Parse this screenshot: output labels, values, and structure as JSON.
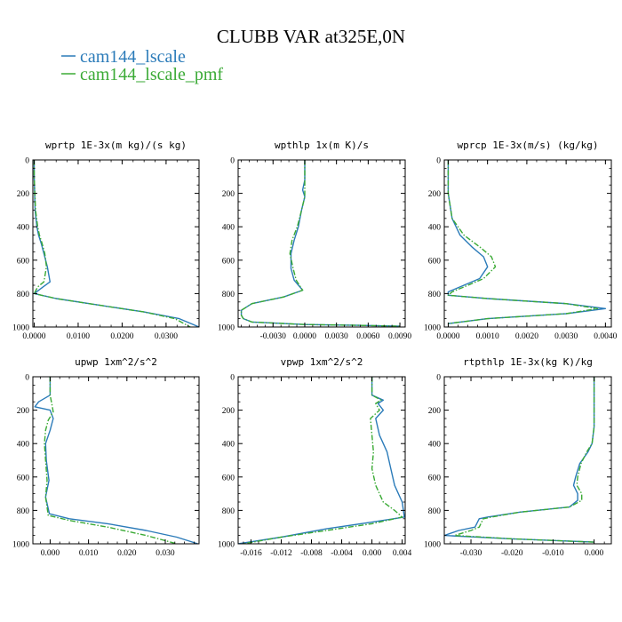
{
  "figure": {
    "title": "CLUBB VAR at325E,0N",
    "legend": [
      {
        "label": "cam144_lscale",
        "color": "#2b7bb9",
        "dash": "solid"
      },
      {
        "label": "cam144_lscale_pmf",
        "color": "#3aaa35",
        "dash": "dashdot"
      }
    ]
  },
  "chart_data": [
    {
      "type": "line",
      "title": "wprtp  1E-3x(m kg)/(s kg)",
      "xlim": [
        -0.0003,
        0.0375
      ],
      "ylim": [
        0,
        1000
      ],
      "y_inverted": true,
      "xticks": [
        0.0,
        0.01,
        0.02,
        0.03
      ],
      "xtick_labels": [
        "0.0000",
        "0.0100",
        "0.0200",
        "0.0300"
      ],
      "yticks": [
        0,
        200,
        400,
        600,
        800,
        1000
      ],
      "series": [
        {
          "name": "cam144_lscale",
          "x": [
            0.0,
            0.0,
            0.0002,
            0.0006,
            0.001,
            0.0016,
            0.0022,
            0.003,
            0.0036,
            0.002,
            0.0,
            0.005,
            0.015,
            0.025,
            0.033,
            0.0375
          ],
          "y": [
            0,
            100,
            300,
            400,
            450,
            500,
            560,
            640,
            730,
            760,
            800,
            830,
            870,
            910,
            950,
            1000
          ]
        },
        {
          "name": "cam144_lscale_pmf",
          "x": [
            0.0,
            0.0,
            0.0003,
            0.0008,
            0.0012,
            0.0018,
            0.0024,
            0.0028,
            0.0022,
            0.0008,
            0.0,
            0.005,
            0.015,
            0.025,
            0.032,
            0.0355
          ],
          "y": [
            0,
            100,
            300,
            400,
            450,
            500,
            560,
            640,
            730,
            760,
            800,
            830,
            870,
            910,
            950,
            1000
          ]
        }
      ]
    },
    {
      "type": "line",
      "title": "wpthlp  1x(m K)/s",
      "xlim": [
        -0.0063,
        0.0095
      ],
      "ylim": [
        0,
        1000
      ],
      "y_inverted": true,
      "xticks": [
        -0.003,
        0.0,
        0.003,
        0.006,
        0.009
      ],
      "xtick_labels": [
        "-0.0030",
        "0.0000",
        "0.0030",
        "0.0060",
        "0.0090"
      ],
      "yticks": [
        0,
        200,
        400,
        600,
        800,
        1000
      ],
      "series": [
        {
          "name": "cam144_lscale",
          "x": [
            0.0,
            0.0,
            -0.0002,
            0.0,
            -0.0003,
            -0.0006,
            -0.001,
            -0.0013,
            -0.0013,
            -0.001,
            -0.0002,
            -0.002,
            -0.005,
            -0.006,
            -0.006,
            -0.0058,
            -0.005,
            0.0,
            0.005,
            0.009
          ],
          "y": [
            0,
            120,
            180,
            220,
            300,
            400,
            480,
            560,
            650,
            720,
            780,
            820,
            860,
            900,
            930,
            950,
            970,
            985,
            990,
            995
          ]
        },
        {
          "name": "cam144_lscale_pmf",
          "x": [
            0.0,
            0.0,
            0.0,
            0.0,
            -0.0003,
            -0.0007,
            -0.0012,
            -0.0014,
            -0.0011,
            -0.0008,
            -0.0002,
            -0.002,
            -0.005,
            -0.006,
            -0.006,
            -0.0058,
            -0.005,
            0.0,
            0.005,
            0.009
          ],
          "y": [
            0,
            120,
            180,
            220,
            300,
            400,
            480,
            560,
            650,
            720,
            780,
            820,
            860,
            900,
            930,
            950,
            970,
            985,
            990,
            995
          ]
        }
      ]
    },
    {
      "type": "line",
      "title": "wprcp  1E-3x(m/s) (kg/kg)",
      "xlim": [
        -0.0001,
        0.00415
      ],
      "ylim": [
        0,
        1000
      ],
      "y_inverted": true,
      "xticks": [
        0.0,
        0.001,
        0.002,
        0.003,
        0.004
      ],
      "xtick_labels": [
        "0.0000",
        "0.0010",
        "0.0020",
        "0.0030",
        "0.0040"
      ],
      "yticks": [
        0,
        200,
        400,
        600,
        800,
        1000
      ],
      "series": [
        {
          "name": "cam144_lscale",
          "x": [
            0.0,
            0.0,
            0.0001,
            0.0003,
            0.0006,
            0.0009,
            0.001,
            0.0008,
            0.0003,
            0.0,
            0.0,
            0.001,
            0.003,
            0.004,
            0.003,
            0.001,
            0.0
          ],
          "y": [
            0,
            200,
            350,
            450,
            520,
            580,
            640,
            710,
            760,
            790,
            810,
            830,
            860,
            890,
            920,
            950,
            980
          ]
        },
        {
          "name": "cam144_lscale_pmf",
          "x": [
            0.0,
            0.0,
            0.0001,
            0.0004,
            0.0008,
            0.0011,
            0.0012,
            0.0009,
            0.0004,
            0.0001,
            0.0,
            0.001,
            0.003,
            0.0038,
            0.003,
            0.001,
            0.0
          ],
          "y": [
            0,
            200,
            350,
            450,
            520,
            580,
            640,
            710,
            760,
            790,
            810,
            830,
            860,
            890,
            920,
            950,
            980
          ]
        }
      ]
    },
    {
      "type": "line",
      "title": "upwp  1xm^2/s^2",
      "xlim": [
        -0.0045,
        0.0388
      ],
      "ylim": [
        0,
        1000
      ],
      "y_inverted": true,
      "xticks": [
        0.0,
        0.01,
        0.02,
        0.03
      ],
      "xtick_labels": [
        "0.000",
        "0.010",
        "0.020",
        "0.030"
      ],
      "yticks": [
        0,
        200,
        400,
        600,
        800,
        1000
      ],
      "series": [
        {
          "name": "cam144_lscale",
          "x": [
            0.0,
            0.0,
            -0.003,
            -0.004,
            0.0,
            0.0008,
            0.0,
            -0.0012,
            -0.001,
            -0.0003,
            -0.0012,
            -0.0002,
            0.005,
            0.015,
            0.025,
            0.033,
            0.0385
          ],
          "y": [
            0,
            110,
            150,
            180,
            200,
            250,
            320,
            400,
            500,
            620,
            720,
            820,
            850,
            880,
            920,
            960,
            1000
          ]
        },
        {
          "name": "cam144_lscale_pmf",
          "x": [
            0.0,
            0.0,
            0.0005,
            0.0008,
            -0.0005,
            -0.0012,
            -0.0015,
            -0.0012,
            -0.0008,
            -0.0012,
            -0.0005,
            0.005,
            0.015,
            0.025,
            0.033
          ],
          "y": [
            0,
            110,
            170,
            210,
            260,
            320,
            400,
            500,
            620,
            720,
            830,
            860,
            900,
            950,
            1000
          ]
        }
      ]
    },
    {
      "type": "line",
      "title": "vpwp  1xm^2/s^2",
      "xlim": [
        -0.0177,
        0.0044
      ],
      "ylim": [
        0,
        1000
      ],
      "y_inverted": true,
      "xticks": [
        -0.016,
        -0.012,
        -0.008,
        -0.004,
        0.0,
        0.004
      ],
      "xtick_labels": [
        "-0.016",
        "-0.012",
        "-0.008",
        "-0.004",
        "0.000",
        "0.004"
      ],
      "yticks": [
        0,
        200,
        400,
        600,
        800,
        1000
      ],
      "series": [
        {
          "name": "cam144_lscale",
          "x": [
            0.0,
            0.0,
            0.0015,
            0.0008,
            0.0015,
            0.0005,
            0.001,
            0.002,
            0.0025,
            0.003,
            0.004,
            0.0043,
            0.0,
            -0.006,
            -0.012,
            -0.0177
          ],
          "y": [
            0,
            110,
            140,
            160,
            200,
            250,
            350,
            450,
            550,
            650,
            750,
            840,
            870,
            910,
            960,
            1000
          ]
        },
        {
          "name": "cam144_lscale_pmf",
          "x": [
            0.0,
            0.0,
            0.0012,
            0.0005,
            0.001,
            -0.0002,
            0.0,
            0.0002,
            0.0,
            0.0005,
            0.0015,
            0.003,
            0.004,
            0.0,
            -0.006,
            -0.012,
            -0.017
          ],
          "y": [
            0,
            110,
            140,
            160,
            200,
            250,
            350,
            450,
            550,
            650,
            750,
            800,
            840,
            880,
            920,
            960,
            1000
          ]
        }
      ]
    },
    {
      "type": "line",
      "title": "rtpthlp  1E-3x(kg K)/kg",
      "xlim": [
        -0.0365,
        0.0042
      ],
      "ylim": [
        0,
        1000
      ],
      "y_inverted": true,
      "xticks": [
        -0.03,
        -0.02,
        -0.01,
        0.0
      ],
      "xtick_labels": [
        "-0.030",
        "-0.020",
        "-0.010",
        "0.000"
      ],
      "yticks": [
        0,
        200,
        400,
        600,
        800,
        1000
      ],
      "series": [
        {
          "name": "cam144_lscale",
          "x": [
            0.0,
            0.0,
            -0.0005,
            -0.0015,
            -0.0035,
            -0.0045,
            -0.005,
            -0.004,
            -0.004,
            -0.006,
            -0.018,
            -0.026,
            -0.028,
            -0.029,
            -0.033,
            -0.0365,
            -0.02,
            0.0
          ],
          "y": [
            0,
            300,
            400,
            450,
            520,
            600,
            650,
            700,
            740,
            780,
            810,
            840,
            850,
            900,
            920,
            950,
            970,
            990
          ]
        },
        {
          "name": "cam144_lscale_pmf",
          "x": [
            0.0,
            0.0,
            -0.0005,
            -0.0018,
            -0.0032,
            -0.004,
            -0.0042,
            -0.003,
            -0.003,
            -0.006,
            -0.018,
            -0.025,
            -0.027,
            -0.028,
            -0.03,
            -0.034,
            -0.02,
            0.0
          ],
          "y": [
            0,
            300,
            400,
            450,
            520,
            600,
            650,
            700,
            740,
            780,
            810,
            840,
            850,
            900,
            920,
            950,
            970,
            990
          ]
        }
      ]
    }
  ]
}
